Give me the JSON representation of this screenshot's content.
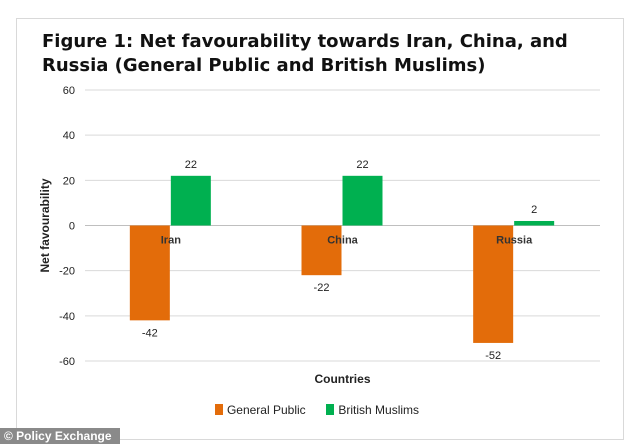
{
  "chart_data": {
    "type": "bar",
    "title": "Figure 1: Net favourability towards Iran, China, and Russia (General Public and British Muslims)",
    "xlabel": "Countries",
    "ylabel": "Net favourability",
    "categories": [
      "Iran",
      "China",
      "Russia"
    ],
    "series": [
      {
        "name": "General Public",
        "values": [
          -42,
          -22,
          -52
        ],
        "color": "#e36c0a"
      },
      {
        "name": "British Muslims",
        "values": [
          22,
          22,
          2
        ],
        "color": "#00b050"
      }
    ],
    "ylim": [
      -60,
      60
    ],
    "yticks": [
      60,
      40,
      20,
      0,
      -20,
      -40,
      -60
    ],
    "grid": true,
    "legend": "bottom"
  },
  "watermark": "© Policy Exchange"
}
